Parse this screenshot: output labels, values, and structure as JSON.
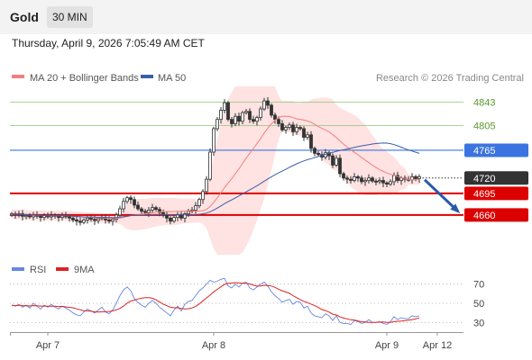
{
  "header": {
    "title": "Gold",
    "timeframe": "30 MIN",
    "timestamp": "Thursday, April 9, 2026 7:05:49 AM CET"
  },
  "legend": {
    "ma20": "MA 20 + Bollinger Bands",
    "ma50": "MA 50",
    "rsi": "RSI",
    "rsi_ma": "9MA",
    "copyright": "Research © 2026 Trading Central"
  },
  "colors": {
    "bull": "#333333",
    "bear": "#333333",
    "ma20": "#f08080",
    "bb_fill": "#ffd8d8",
    "ma50": "#3a5fa8",
    "rsi": "#6688dd",
    "rsi_ma": "#dd2222",
    "green_level": "#8cc870",
    "blue_level": "#3b74e0",
    "red_level": "#dd0000",
    "current_price": "#333333"
  },
  "chart_data": {
    "type": "candlestick",
    "price_scale": {
      "min": 4600,
      "max": 4870
    },
    "levels": [
      {
        "label": "4843",
        "value": 4843,
        "kind": "resistance-green"
      },
      {
        "label": "4805",
        "value": 4805,
        "kind": "resistance-green"
      },
      {
        "label": "4765",
        "value": 4765,
        "kind": "pivot-blue"
      },
      {
        "label": "4720",
        "value": 4720,
        "kind": "current"
      },
      {
        "label": "4695",
        "value": 4695,
        "kind": "support-red"
      },
      {
        "label": "4660",
        "value": 4660,
        "kind": "support-red"
      }
    ],
    "x_ticks": [
      {
        "label": "Apr 7",
        "index": 10
      },
      {
        "label": "Apr 8",
        "index": 56
      },
      {
        "label": "Apr 9",
        "index": 104
      },
      {
        "label": "Apr 12",
        "index": 118
      }
    ],
    "rsi_scale": {
      "min": 20,
      "max": 80
    },
    "rsi_ticks": [
      70,
      50,
      30
    ],
    "closes": [
      4662,
      4660,
      4662,
      4658,
      4659,
      4657,
      4660,
      4658,
      4656,
      4659,
      4657,
      4660,
      4658,
      4656,
      4659,
      4657,
      4655,
      4652,
      4650,
      4648,
      4652,
      4655,
      4653,
      4651,
      4654,
      4656,
      4652,
      4650,
      4653,
      4660,
      4670,
      4682,
      4688,
      4685,
      4676,
      4670,
      4666,
      4664,
      4668,
      4672,
      4669,
      4664,
      4660,
      4655,
      4650,
      4656,
      4660,
      4655,
      4662,
      4666,
      4668,
      4675,
      4685,
      4698,
      4718,
      4762,
      4800,
      4815,
      4830,
      4842,
      4815,
      4808,
      4820,
      4812,
      4826,
      4828,
      4815,
      4812,
      4818,
      4832,
      4845,
      4838,
      4822,
      4815,
      4808,
      4798,
      4802,
      4806,
      4795,
      4802,
      4800,
      4786,
      4790,
      4768,
      4760,
      4758,
      4754,
      4761,
      4756,
      4741,
      4752,
      4727,
      4720,
      4718,
      4716,
      4722,
      4720,
      4714,
      4716,
      4720,
      4715,
      4714,
      4716,
      4712,
      4710,
      4714,
      4724,
      4716,
      4720,
      4718,
      4717,
      4722,
      4719,
      4722
    ],
    "rsi": [
      48,
      47,
      49,
      46,
      48,
      45,
      50,
      47,
      44,
      48,
      46,
      49,
      46,
      44,
      47,
      45,
      43,
      40,
      38,
      37,
      41,
      44,
      42,
      40,
      43,
      46,
      41,
      39,
      43,
      50,
      58,
      64,
      67,
      63,
      55,
      51,
      48,
      46,
      50,
      53,
      50,
      46,
      43,
      40,
      37,
      43,
      47,
      42,
      49,
      52,
      53,
      58,
      63,
      66,
      70,
      74,
      72,
      73,
      75,
      76,
      68,
      66,
      70,
      67,
      71,
      72,
      66,
      64,
      67,
      70,
      72,
      68,
      62,
      58,
      55,
      51,
      53,
      54,
      49,
      52,
      51,
      45,
      47,
      40,
      37,
      36,
      35,
      39,
      37,
      32,
      37,
      30,
      29,
      29,
      28,
      32,
      31,
      29,
      30,
      33,
      30,
      30,
      31,
      29,
      28,
      31,
      36,
      33,
      35,
      34,
      34,
      37,
      36,
      37
    ]
  }
}
